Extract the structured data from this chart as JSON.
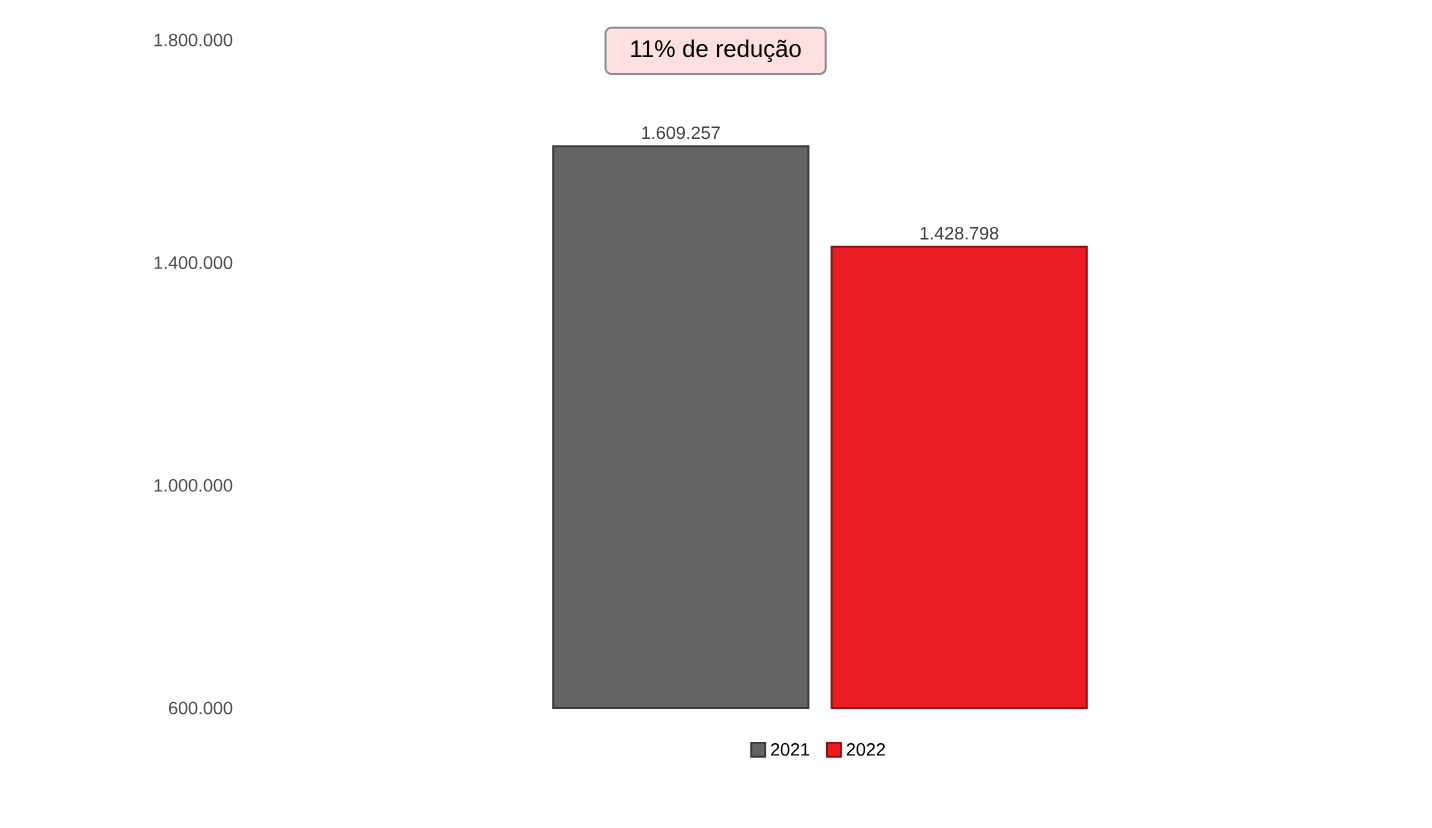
{
  "chart_data": {
    "type": "bar",
    "categories": [
      null
    ],
    "series": [
      {
        "name": "2021",
        "color": "#646464",
        "values": [
          1609257
        ],
        "value_labels": [
          "1.609.257"
        ]
      },
      {
        "name": "2022",
        "color": "#ec1c24",
        "values": [
          1428798
        ],
        "value_labels": [
          "1.428.798"
        ]
      }
    ],
    "ylim": [
      600000,
      1800000
    ],
    "yticks": [
      {
        "value": 600000,
        "label": "600.000"
      },
      {
        "value": 1000000,
        "label": "1.000.000"
      },
      {
        "value": 1400000,
        "label": "1.400.000"
      },
      {
        "value": 1800000,
        "label": "1.800.000"
      }
    ],
    "annotations": [
      "11% de redução"
    ],
    "legend": "bottom"
  }
}
